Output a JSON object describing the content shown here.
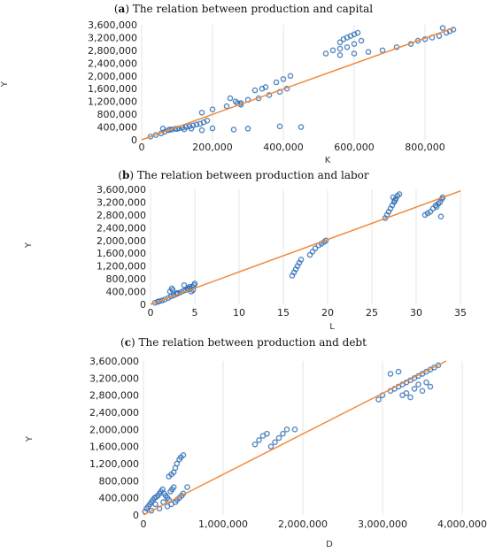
{
  "chart_data": [
    {
      "type": "scatter",
      "label_prefix": "a",
      "title": "The relation between production and capital",
      "xlabel": "K",
      "ylabel": "Y",
      "xlim": [
        0,
        900000
      ],
      "ylim": [
        0,
        3600000
      ],
      "xticks": [
        0,
        200000,
        400000,
        600000,
        800000
      ],
      "xtick_labels": [
        "0",
        "200,000",
        "400,000",
        "600,000",
        "800,000"
      ],
      "yticks": [
        0,
        400000,
        800000,
        1200000,
        1600000,
        2000000,
        2400000,
        2800000,
        3200000,
        3600000
      ],
      "ytick_labels": [
        "0",
        "400,000",
        "800,000",
        "1,200,000",
        "1,600,000",
        "2,000,000",
        "2,400,000",
        "2,800,000",
        "3,200,000",
        "3,600,000"
      ],
      "grid": true,
      "series": [
        {
          "x": [
            25000,
            40000,
            55000,
            65000,
            75000,
            85000,
            95000,
            105000,
            115000,
            125000,
            135000,
            145000,
            155000,
            165000,
            175000,
            185000,
            60000,
            80000,
            100000,
            120000,
            140000,
            170000,
            200000,
            260000,
            300000,
            390000,
            450000,
            170000,
            200000,
            240000,
            280000,
            300000,
            330000,
            360000,
            390000,
            410000,
            250000,
            265000,
            270000,
            280000,
            320000,
            340000,
            350000,
            380000,
            400000,
            420000,
            520000,
            540000,
            560000,
            580000,
            600000,
            560000,
            570000,
            580000,
            590000,
            600000,
            610000,
            620000,
            560000,
            600000,
            640000,
            680000,
            720000,
            760000,
            780000,
            800000,
            820000,
            840000,
            860000,
            870000,
            880000,
            850000
          ],
          "y": [
            100000,
            150000,
            200000,
            250000,
            300000,
            320000,
            340000,
            360000,
            380000,
            400000,
            420000,
            450000,
            480000,
            500000,
            550000,
            600000,
            350000,
            320000,
            340000,
            330000,
            350000,
            300000,
            360000,
            320000,
            350000,
            420000,
            400000,
            850000,
            950000,
            1050000,
            1150000,
            1250000,
            1300000,
            1400000,
            1500000,
            1600000,
            1300000,
            1200000,
            1150000,
            1100000,
            1550000,
            1600000,
            1650000,
            1800000,
            1900000,
            2000000,
            2700000,
            2800000,
            2850000,
            2900000,
            3000000,
            3050000,
            3150000,
            3200000,
            3250000,
            3300000,
            3350000,
            3100000,
            2650000,
            2700000,
            2750000,
            2800000,
            2900000,
            3000000,
            3100000,
            3150000,
            3200000,
            3250000,
            3350000,
            3400000,
            3450000,
            3500000
          ]
        }
      ],
      "trend": {
        "x": [
          0,
          880000
        ],
        "y": [
          0,
          3500000
        ]
      }
    },
    {
      "type": "scatter",
      "label_prefix": "b",
      "title": "The relation between production and labor",
      "xlabel": "L",
      "ylabel": "Y",
      "xlim": [
        0,
        35
      ],
      "ylim": [
        0,
        3600000
      ],
      "xticks": [
        0,
        5,
        10,
        15,
        20,
        25,
        30,
        35
      ],
      "xtick_labels": [
        "0",
        "5",
        "10",
        "15",
        "20",
        "25",
        "30",
        "35"
      ],
      "yticks": [
        0,
        400000,
        800000,
        1200000,
        1600000,
        2000000,
        2400000,
        2800000,
        3200000,
        3600000
      ],
      "ytick_labels": [
        "0",
        "400,000",
        "800,000",
        "1,200,000",
        "1,600,000",
        "2,000,000",
        "2,400,000",
        "2,800,000",
        "3,200,000",
        "3,600,000"
      ],
      "grid": true,
      "series": [
        {
          "x": [
            0.5,
            0.8,
            1.0,
            1.3,
            1.6,
            2.0,
            2.3,
            2.6,
            2.9,
            3.1,
            3.4,
            3.7,
            4.0,
            4.3,
            4.5,
            4.7,
            4.9,
            5.0,
            2.2,
            2.4,
            3.8,
            4.2,
            4.4,
            4.6,
            4.8,
            2.5,
            3.0,
            16.0,
            16.2,
            16.4,
            16.6,
            16.8,
            17.0,
            18.0,
            18.3,
            18.6,
            19.0,
            19.3,
            19.6,
            19.8,
            26.5,
            26.7,
            26.9,
            27.1,
            27.3,
            27.5,
            27.7,
            27.9,
            28.1,
            27.4,
            27.6,
            31.0,
            31.3,
            31.6,
            31.9,
            32.2,
            32.5,
            32.7,
            32.9,
            33.0,
            32.8,
            32.3
          ],
          "y": [
            50000,
            80000,
            100000,
            120000,
            150000,
            200000,
            250000,
            280000,
            320000,
            350000,
            380000,
            420000,
            450000,
            480000,
            500000,
            550000,
            600000,
            650000,
            400000,
            500000,
            600000,
            500000,
            550000,
            400000,
            450000,
            450000,
            350000,
            900000,
            1000000,
            1100000,
            1200000,
            1300000,
            1400000,
            1550000,
            1650000,
            1750000,
            1850000,
            1900000,
            1950000,
            2000000,
            2700000,
            2800000,
            2900000,
            3000000,
            3100000,
            3200000,
            3300000,
            3400000,
            3450000,
            3350000,
            3250000,
            2800000,
            2850000,
            2900000,
            3000000,
            3100000,
            3150000,
            3200000,
            3300000,
            3350000,
            2750000,
            3050000
          ]
        }
      ],
      "trend": {
        "x": [
          0,
          35
        ],
        "y": [
          0,
          3550000
        ]
      }
    },
    {
      "type": "scatter",
      "label_prefix": "c",
      "title": "The relation between production and debt",
      "xlabel": "D",
      "ylabel": "Y",
      "xlim": [
        0,
        4000000
      ],
      "ylim": [
        0,
        3600000
      ],
      "xticks": [
        0,
        1000000,
        2000000,
        3000000,
        4000000
      ],
      "xtick_labels": [
        "0",
        "1,000,000",
        "2,000,000",
        "3,000,000",
        "4,000,000"
      ],
      "yticks": [
        0,
        400000,
        800000,
        1200000,
        1600000,
        2000000,
        2400000,
        2800000,
        3200000,
        3600000
      ],
      "ytick_labels": [
        "0",
        "400,000",
        "800,000",
        "1,200,000",
        "1,600,000",
        "2,000,000",
        "2,400,000",
        "2,800,000",
        "3,200,000",
        "3,600,000"
      ],
      "grid": true,
      "series": [
        {
          "x": [
            20000,
            40000,
            60000,
            80000,
            100000,
            120000,
            140000,
            160000,
            180000,
            200000,
            220000,
            240000,
            260000,
            280000,
            300000,
            320000,
            340000,
            360000,
            380000,
            400000,
            420000,
            450000,
            480000,
            500000,
            550000,
            150000,
            250000,
            350000,
            300000,
            200000,
            100000,
            380000,
            400000,
            420000,
            450000,
            470000,
            500000,
            320000,
            350000,
            1600000,
            1650000,
            1700000,
            1750000,
            1800000,
            1400000,
            1450000,
            1500000,
            1550000,
            1900000,
            2950000,
            3000000,
            3100000,
            3150000,
            3200000,
            3250000,
            3300000,
            3350000,
            3400000,
            3450000,
            3500000,
            3550000,
            3600000,
            3650000,
            3700000,
            3250000,
            3300000,
            3350000,
            3400000,
            3450000,
            3100000,
            3200000,
            3500000,
            3600000,
            3550000
          ],
          "y": [
            80000,
            150000,
            200000,
            250000,
            300000,
            350000,
            400000,
            420000,
            450000,
            500000,
            550000,
            600000,
            500000,
            450000,
            400000,
            350000,
            550000,
            600000,
            650000,
            300000,
            350000,
            400000,
            450000,
            500000,
            650000,
            250000,
            300000,
            250000,
            200000,
            150000,
            100000,
            1000000,
            1100000,
            1200000,
            1300000,
            1350000,
            1400000,
            900000,
            950000,
            1600000,
            1700000,
            1800000,
            1900000,
            2000000,
            1650000,
            1750000,
            1850000,
            1900000,
            2000000,
            2700000,
            2800000,
            2900000,
            2950000,
            3000000,
            3050000,
            3100000,
            3150000,
            3200000,
            3250000,
            3300000,
            3350000,
            3400000,
            3450000,
            3500000,
            2800000,
            2850000,
            2750000,
            2950000,
            3050000,
            3300000,
            3350000,
            2900000,
            3000000,
            3100000
          ]
        }
      ],
      "trend": {
        "x": [
          0,
          3800000
        ],
        "y": [
          0,
          3600000
        ]
      }
    }
  ],
  "colors": {
    "points": "#2e6db4",
    "trend": "#f08a3c",
    "grid": "#e6e6e6"
  }
}
